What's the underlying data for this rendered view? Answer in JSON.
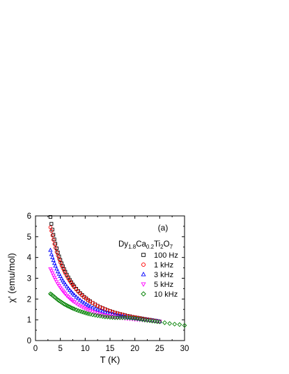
{
  "chart_data": {
    "type": "scatter",
    "panel_label": "(a)",
    "compound": {
      "parts": [
        "Dy",
        "1.8",
        "Ca",
        "0.2",
        "Ti",
        "2",
        "O",
        "7"
      ]
    },
    "xlabel": "T (K)",
    "ylabel": "χ' (emu/mol)",
    "xlim": [
      0,
      30
    ],
    "ylim": [
      0,
      6
    ],
    "xticks": [
      "0",
      "5",
      "10",
      "15",
      "20",
      "25",
      "30"
    ],
    "yticks": [
      "0",
      "1",
      "2",
      "3",
      "4",
      "5",
      "6"
    ],
    "grid": false,
    "legend_placement": "right",
    "series": [
      {
        "name": "100 Hz",
        "marker": "square",
        "color": "#000000",
        "x": [
          3.0,
          3.2,
          3.4,
          3.6,
          3.8,
          4.0,
          4.25,
          4.5,
          4.75,
          5.0,
          5.25,
          5.5,
          5.75,
          6.0,
          6.3,
          6.6,
          6.9,
          7.2,
          7.5,
          7.8,
          8.2,
          8.6,
          9.0,
          9.4,
          9.8,
          10.2,
          10.6,
          11.0,
          11.5,
          12.0,
          12.5,
          13.0,
          13.5,
          14.0,
          14.5,
          15.0,
          15.5,
          16.0,
          16.5,
          17.0,
          17.5,
          18.0,
          18.5,
          19.0,
          19.5,
          20.0,
          20.5,
          21.0,
          21.5,
          22.0,
          22.5,
          23.0,
          23.5,
          24.0,
          24.5,
          25.0
        ],
        "y": [
          5.95,
          5.62,
          5.34,
          5.09,
          4.87,
          4.66,
          4.44,
          4.24,
          4.05,
          3.88,
          3.72,
          3.58,
          3.44,
          3.31,
          3.17,
          3.04,
          2.92,
          2.81,
          2.7,
          2.61,
          2.49,
          2.38,
          2.28,
          2.19,
          2.1,
          2.03,
          1.95,
          1.89,
          1.81,
          1.74,
          1.67,
          1.61,
          1.56,
          1.51,
          1.46,
          1.42,
          1.38,
          1.34,
          1.31,
          1.28,
          1.25,
          1.22,
          1.19,
          1.17,
          1.14,
          1.12,
          1.1,
          1.08,
          1.06,
          1.04,
          1.02,
          1.0,
          0.98,
          0.96,
          0.94,
          0.92
        ]
      },
      {
        "name": "1 kHz",
        "marker": "circle",
        "color": "#ff0000",
        "x": [
          3.0,
          3.2,
          3.4,
          3.6,
          3.8,
          4.0,
          4.25,
          4.5,
          4.75,
          5.0,
          5.25,
          5.5,
          5.75,
          6.0,
          6.3,
          6.6,
          6.9,
          7.2,
          7.5,
          7.8,
          8.2,
          8.6,
          9.0,
          9.4,
          9.8,
          10.2,
          10.6,
          11.0,
          11.5,
          12.0,
          12.5,
          13.0,
          13.5,
          14.0,
          14.5,
          15.0,
          15.5,
          16.0,
          16.5,
          17.0,
          17.5,
          18.0,
          18.5,
          19.0,
          19.5,
          20.0,
          20.5,
          21.0,
          21.5,
          22.0,
          22.5,
          23.0,
          23.5,
          24.0,
          24.5,
          25.0
        ],
        "y": [
          5.45,
          5.28,
          5.06,
          4.85,
          4.65,
          4.47,
          4.27,
          4.09,
          3.92,
          3.76,
          3.61,
          3.48,
          3.35,
          3.23,
          3.1,
          2.98,
          2.87,
          2.76,
          2.66,
          2.57,
          2.46,
          2.35,
          2.26,
          2.17,
          2.09,
          2.02,
          1.95,
          1.88,
          1.81,
          1.74,
          1.67,
          1.61,
          1.56,
          1.51,
          1.46,
          1.42,
          1.38,
          1.34,
          1.31,
          1.28,
          1.25,
          1.22,
          1.19,
          1.17,
          1.14,
          1.12,
          1.1,
          1.08,
          1.06,
          1.04,
          1.02,
          1.0,
          0.98,
          0.96,
          0.94,
          0.92
        ]
      },
      {
        "name": "3 kHz",
        "marker": "triangle-up",
        "color": "#0000ff",
        "x": [
          3.0,
          3.2,
          3.4,
          3.6,
          3.8,
          4.0,
          4.25,
          4.5,
          4.75,
          5.0,
          5.25,
          5.5,
          5.75,
          6.0,
          6.3,
          6.6,
          6.9,
          7.2,
          7.5,
          7.8,
          8.2,
          8.6,
          9.0,
          9.4,
          9.8,
          10.2,
          10.6,
          11.0,
          11.5,
          12.0,
          12.5,
          13.0,
          13.5,
          14.0,
          14.5,
          15.0,
          15.5,
          16.0,
          16.5,
          17.0,
          17.5,
          18.0,
          18.5,
          19.0,
          19.5,
          20.0,
          20.5,
          21.0,
          21.5,
          22.0,
          22.5,
          23.0,
          23.5,
          24.0,
          24.5,
          25.0
        ],
        "y": [
          4.35,
          4.15,
          4.0,
          3.86,
          3.72,
          3.59,
          3.45,
          3.32,
          3.2,
          3.09,
          2.98,
          2.88,
          2.79,
          2.7,
          2.6,
          2.51,
          2.42,
          2.34,
          2.26,
          2.19,
          2.1,
          2.02,
          1.94,
          1.87,
          1.81,
          1.75,
          1.69,
          1.64,
          1.58,
          1.53,
          1.48,
          1.44,
          1.4,
          1.36,
          1.33,
          1.3,
          1.27,
          1.24,
          1.21,
          1.19,
          1.17,
          1.15,
          1.13,
          1.11,
          1.09,
          1.07,
          1.06,
          1.04,
          1.03,
          1.01,
          1.0,
          0.98,
          0.97,
          0.95,
          0.94,
          0.92
        ]
      },
      {
        "name": "5 kHz",
        "marker": "triangle-down",
        "color": "#ff00ff",
        "x": [
          3.0,
          3.2,
          3.4,
          3.6,
          3.8,
          4.0,
          4.25,
          4.5,
          4.75,
          5.0,
          5.25,
          5.5,
          5.75,
          6.0,
          6.3,
          6.6,
          6.9,
          7.2,
          7.5,
          7.8,
          8.2,
          8.6,
          9.0,
          9.4,
          9.8,
          10.2,
          10.6,
          11.0,
          11.5,
          12.0,
          12.5,
          13.0,
          13.5,
          14.0,
          14.5,
          15.0,
          15.5,
          16.0,
          16.5,
          17.0,
          17.5,
          18.0,
          18.5,
          19.0,
          19.5,
          20.0,
          20.5,
          21.0,
          21.5,
          22.0,
          22.5,
          23.0,
          23.5,
          24.0,
          24.5,
          25.0
        ],
        "y": [
          3.45,
          3.36,
          3.25,
          3.14,
          3.04,
          2.94,
          2.83,
          2.73,
          2.64,
          2.55,
          2.47,
          2.39,
          2.32,
          2.25,
          2.17,
          2.1,
          2.03,
          1.97,
          1.91,
          1.86,
          1.79,
          1.73,
          1.67,
          1.62,
          1.57,
          1.52,
          1.48,
          1.44,
          1.39,
          1.35,
          1.32,
          1.28,
          1.25,
          1.22,
          1.2,
          1.18,
          1.16,
          1.14,
          1.12,
          1.1,
          1.09,
          1.07,
          1.06,
          1.05,
          1.04,
          1.02,
          1.01,
          1.0,
          0.99,
          0.98,
          0.97,
          0.96,
          0.95,
          0.94,
          0.93,
          0.92
        ]
      },
      {
        "name": "10 kHz",
        "marker": "diamond",
        "color": "#008000",
        "x": [
          3.0,
          3.2,
          3.4,
          3.6,
          3.8,
          4.0,
          4.25,
          4.5,
          4.75,
          5.0,
          5.25,
          5.5,
          5.75,
          6.0,
          6.3,
          6.6,
          6.9,
          7.2,
          7.5,
          7.8,
          8.2,
          8.6,
          9.0,
          9.4,
          9.8,
          10.2,
          10.6,
          11.0,
          11.5,
          12.0,
          12.5,
          13.0,
          13.5,
          14.0,
          14.5,
          15.0,
          15.5,
          16.0,
          16.5,
          17.0,
          17.5,
          18.0,
          18.5,
          19.0,
          19.5,
          20.0,
          20.5,
          21.0,
          21.5,
          22.0,
          22.5,
          23.0,
          23.5,
          24.0,
          24.5,
          25.0,
          26.0,
          27.0,
          28.0,
          29.0,
          30.0
        ],
        "y": [
          2.25,
          2.22,
          2.18,
          2.14,
          2.1,
          2.06,
          2.01,
          1.96,
          1.92,
          1.88,
          1.84,
          1.8,
          1.76,
          1.73,
          1.69,
          1.65,
          1.62,
          1.58,
          1.55,
          1.52,
          1.48,
          1.44,
          1.41,
          1.38,
          1.35,
          1.32,
          1.29,
          1.27,
          1.24,
          1.22,
          1.2,
          1.18,
          1.16,
          1.14,
          1.13,
          1.12,
          1.11,
          1.1,
          1.1,
          1.1,
          1.1,
          1.1,
          1.1,
          1.09,
          1.08,
          1.07,
          1.05,
          1.03,
          1.01,
          0.99,
          0.97,
          0.96,
          0.94,
          0.93,
          0.91,
          0.9,
          0.86,
          0.82,
          0.79,
          0.77,
          0.73
        ]
      }
    ]
  }
}
